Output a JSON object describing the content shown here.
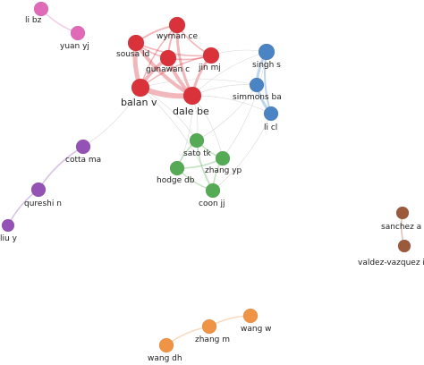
{
  "colors": {
    "red": "#d9323a",
    "blue": "#4b84c4",
    "green": "#55ab55",
    "purple": "#9352b4",
    "pink": "#e06ab8",
    "brown": "#9c5a3c",
    "orange": "#ee9444",
    "link": "#c9c9c9"
  },
  "nodes": [
    {
      "id": "li-bz",
      "label": "li bz",
      "cluster": "pink"
    },
    {
      "id": "yuan-yj",
      "label": "yuan yj",
      "cluster": "pink"
    },
    {
      "id": "wyman-ce",
      "label": "wyman ce",
      "cluster": "red"
    },
    {
      "id": "sousa-ld",
      "label": "sousa ld",
      "cluster": "red"
    },
    {
      "id": "gunawan-c",
      "label": "gunawan c",
      "cluster": "red"
    },
    {
      "id": "jin-mj",
      "label": "jin mj",
      "cluster": "red"
    },
    {
      "id": "balan-v",
      "label": "balan v",
      "cluster": "red"
    },
    {
      "id": "dale-be",
      "label": "dale be",
      "cluster": "red"
    },
    {
      "id": "singh-s",
      "label": "singh s",
      "cluster": "blue"
    },
    {
      "id": "simmons-ba",
      "label": "simmons ba",
      "cluster": "blue"
    },
    {
      "id": "li-cl",
      "label": "li cl",
      "cluster": "blue"
    },
    {
      "id": "sato-tk",
      "label": "sato tk",
      "cluster": "green"
    },
    {
      "id": "zhang-yp",
      "label": "zhang yp",
      "cluster": "green"
    },
    {
      "id": "hodge-db",
      "label": "hodge db",
      "cluster": "green"
    },
    {
      "id": "coon-jj",
      "label": "coon jj",
      "cluster": "green"
    },
    {
      "id": "cotta-ma",
      "label": "cotta ma",
      "cluster": "purple"
    },
    {
      "id": "qureshi-n",
      "label": "qureshi n",
      "cluster": "purple"
    },
    {
      "id": "liu-y",
      "label": "liu y",
      "cluster": "purple"
    },
    {
      "id": "sanchez-a",
      "label": "sanchez a",
      "cluster": "brown"
    },
    {
      "id": "valdez-vazquez-i",
      "label": "valdez-vazquez i",
      "cluster": "brown"
    },
    {
      "id": "wang-w",
      "label": "wang w",
      "cluster": "orange"
    },
    {
      "id": "zhang-m",
      "label": "zhang m",
      "cluster": "orange"
    },
    {
      "id": "wang-dh",
      "label": "wang dh",
      "cluster": "orange"
    }
  ],
  "links": [
    {
      "source": "li-bz",
      "target": "yuan-yj"
    },
    {
      "source": "sousa-ld",
      "target": "balan-v"
    },
    {
      "source": "sousa-ld",
      "target": "dale-be"
    },
    {
      "source": "balan-v",
      "target": "dale-be"
    },
    {
      "source": "gunawan-c",
      "target": "dale-be"
    },
    {
      "source": "gunawan-c",
      "target": "balan-v"
    },
    {
      "source": "jin-mj",
      "target": "dale-be"
    },
    {
      "source": "wyman-ce",
      "target": "dale-be"
    },
    {
      "source": "wyman-ce",
      "target": "sousa-ld"
    },
    {
      "source": "wyman-ce",
      "target": "gunawan-c"
    },
    {
      "source": "wyman-ce",
      "target": "jin-mj"
    },
    {
      "source": "sousa-ld",
      "target": "gunawan-c"
    },
    {
      "source": "sousa-ld",
      "target": "jin-mj"
    },
    {
      "source": "gunawan-c",
      "target": "jin-mj"
    },
    {
      "source": "jin-mj",
      "target": "balan-v"
    },
    {
      "source": "wyman-ce",
      "target": "balan-v"
    },
    {
      "source": "singh-s",
      "target": "simmons-ba"
    },
    {
      "source": "singh-s",
      "target": "li-cl"
    },
    {
      "source": "simmons-ba",
      "target": "li-cl"
    },
    {
      "source": "simmons-ba",
      "target": "dale-be"
    },
    {
      "source": "singh-s",
      "target": "dale-be"
    },
    {
      "source": "li-cl",
      "target": "dale-be"
    },
    {
      "source": "singh-s",
      "target": "jin-mj"
    },
    {
      "source": "simmons-ba",
      "target": "balan-v"
    },
    {
      "source": "sato-tk",
      "target": "zhang-yp"
    },
    {
      "source": "sato-tk",
      "target": "hodge-db"
    },
    {
      "source": "sato-tk",
      "target": "coon-jj"
    },
    {
      "source": "zhang-yp",
      "target": "coon-jj"
    },
    {
      "source": "hodge-db",
      "target": "coon-jj"
    },
    {
      "source": "hodge-db",
      "target": "zhang-yp"
    },
    {
      "source": "sato-tk",
      "target": "dale-be"
    },
    {
      "source": "sato-tk",
      "target": "balan-v"
    },
    {
      "source": "zhang-yp",
      "target": "dale-be"
    },
    {
      "source": "coon-jj",
      "target": "balan-v"
    },
    {
      "source": "hodge-db",
      "target": "dale-be"
    },
    {
      "source": "sato-tk",
      "target": "simmons-ba"
    },
    {
      "source": "coon-jj",
      "target": "li-cl"
    },
    {
      "source": "zhang-yp",
      "target": "singh-s"
    },
    {
      "source": "cotta-ma",
      "target": "balan-v"
    },
    {
      "source": "cotta-ma",
      "target": "qureshi-n"
    },
    {
      "source": "qureshi-n",
      "target": "liu-y"
    },
    {
      "source": "sanchez-a",
      "target": "valdez-vazquez-i"
    },
    {
      "source": "wang-w",
      "target": "zhang-m"
    },
    {
      "source": "zhang-m",
      "target": "wang-dh"
    }
  ]
}
